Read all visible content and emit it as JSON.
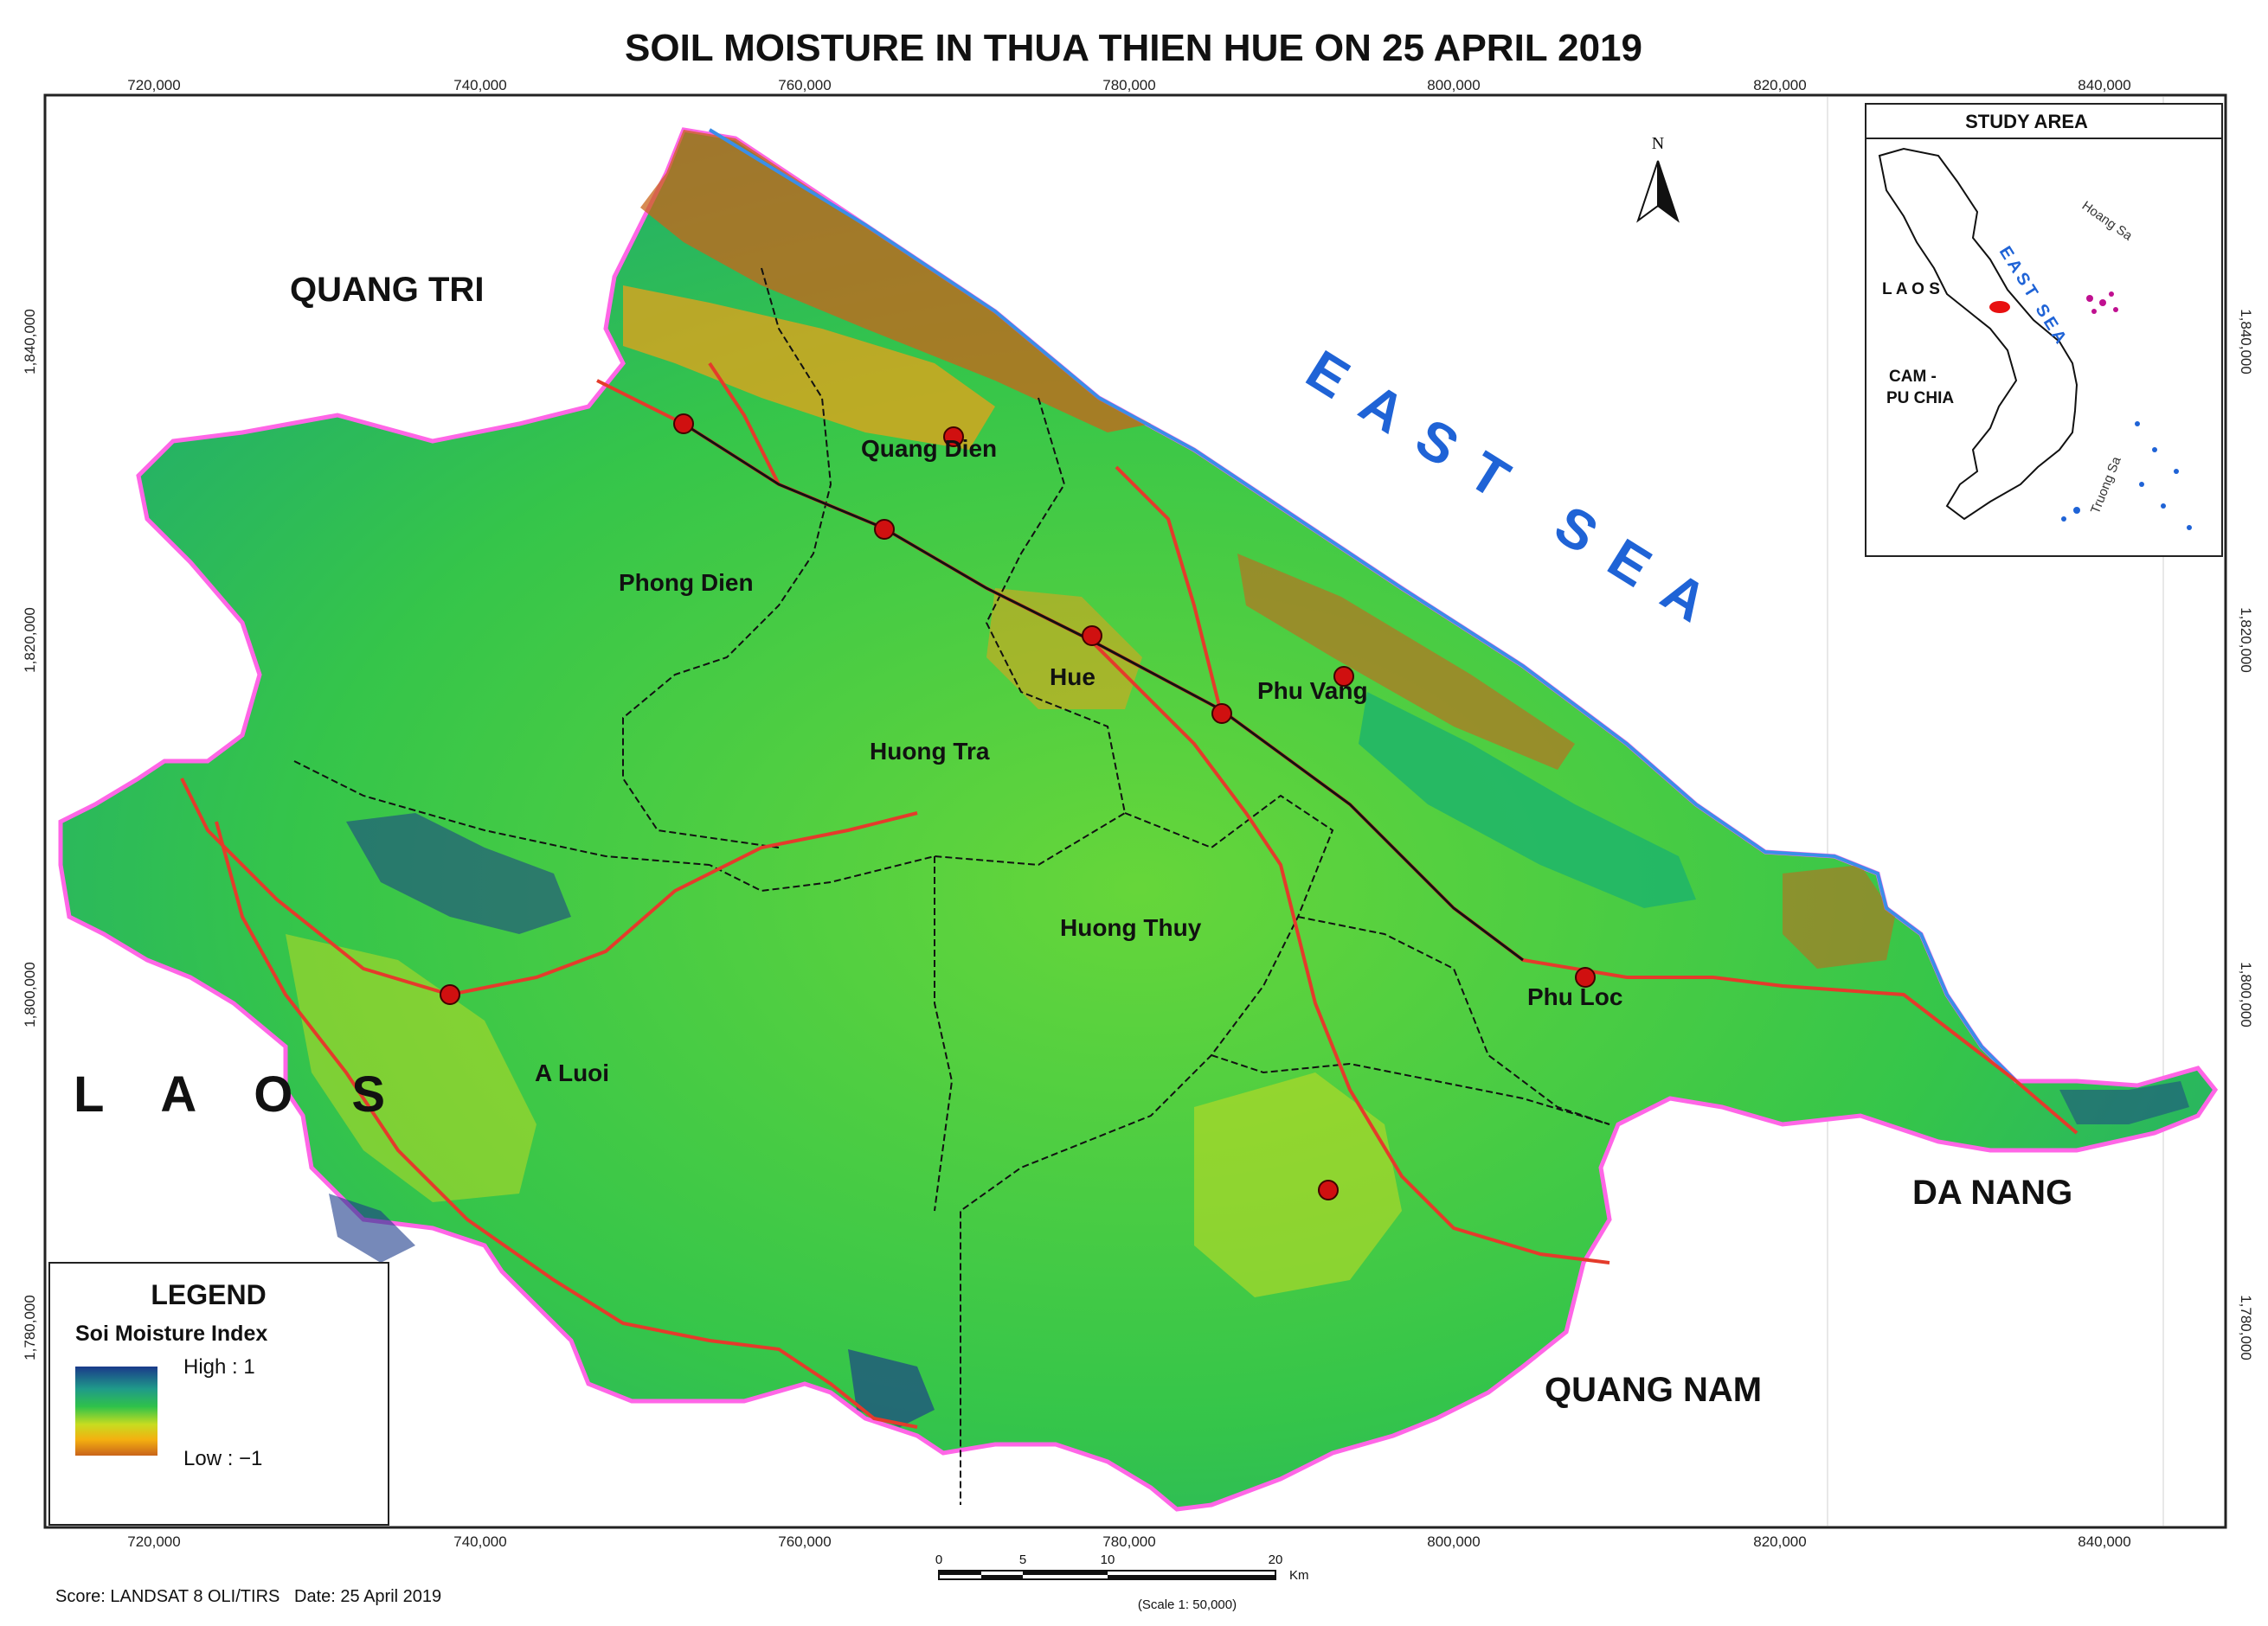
{
  "title": "SOIL MOISTURE IN THUA THIEN HUE ON 25 APRIL 2019",
  "x_ticks": [
    "720,000",
    "740,000",
    "760,000",
    "780,000",
    "800,000",
    "820,000",
    "840,000"
  ],
  "y_ticks": [
    "1,840,000",
    "1,820,000",
    "1,800,000",
    "1,780,000"
  ],
  "neighbors": {
    "quang_tri": "QUANG TRI",
    "laos": "L A O S",
    "east_sea": "EAST SEA",
    "da_nang": "DA NANG",
    "quang_nam": "QUANG NAM"
  },
  "districts": [
    "Quang Dien",
    "Phong Dien",
    "Hue",
    "Phu Vang",
    "Huong Tra",
    "Huong Thuy",
    "Phu Loc",
    "A Luoi"
  ],
  "inset": {
    "title": "STUDY AREA",
    "laos": "L A O S",
    "cambodia_1": "CAM -",
    "cambodia_2": "PU CHIA",
    "east_sea": "EAST SEA",
    "hoang_sa": "Hoang Sa",
    "truong_sa": "Truong Sa"
  },
  "north": "N",
  "legend": {
    "title": "LEGEND",
    "subtitle": "Soi Moisture Index",
    "high": "High : 1",
    "low": "Low : −1",
    "colors": [
      "#1a3a8a",
      "#1f9a8a",
      "#2fc24a",
      "#c8dc20",
      "#f4b010",
      "#c9641a"
    ]
  },
  "scale": {
    "ticks": [
      "0",
      "5",
      "10",
      "20"
    ],
    "unit": "Km",
    "note": "(Scale 1: 50,000)"
  },
  "source": "Score: LANDSAT 8 OLI/TIRS   Date: 25 April 2019",
  "colors": {
    "coast": "#3a8fe8",
    "border": "#ff66e6",
    "road": "#e43b2b",
    "district_line": "#111111",
    "city_marker": "#d01010"
  }
}
